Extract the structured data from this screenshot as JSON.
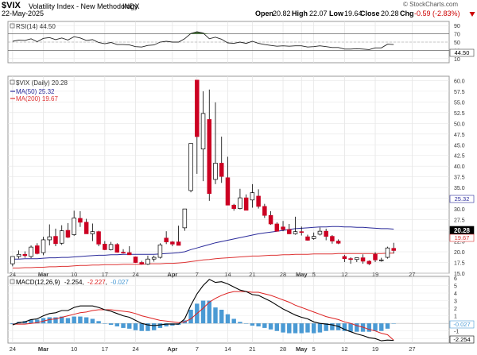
{
  "header": {
    "symbol": "$VIX",
    "name": "Volatility Index - New Methodology",
    "exchange": "INDX",
    "date": "22-May-2025",
    "brand": "© StockCharts.com",
    "open_label": "Open",
    "open": "20.82",
    "high_label": "High",
    "high": "22.07",
    "low_label": "Low",
    "low": "19.64",
    "close_label": "Close",
    "close": "20.28",
    "chg_label": "Chg",
    "chg": "-0.59 (-2.83%)",
    "chg_icon": "down-triangle-icon"
  },
  "colors": {
    "up": "#ffffff",
    "down": "#cc0022",
    "ma50": "#2a2a9a",
    "ma200": "#dd3333",
    "macd_line": "#000000",
    "signal_line": "#dd2222",
    "histogram": "#4a9ad4",
    "rsi_fill": "#4a7a3a"
  },
  "rsi_panel": {
    "legend": "RSI(14) 44.50",
    "ticks": [
      "90",
      "70",
      "50",
      "30",
      "10"
    ],
    "current_label": "44.50"
  },
  "price_panel": {
    "legend": "$VIX (Daily) 20.28",
    "ma50_legend": "MA(50) 25.32",
    "ma200_legend": "MA(200) 19.67",
    "ticks": [
      "60.0",
      "57.5",
      "55.0",
      "52.5",
      "50.0",
      "47.5",
      "45.0",
      "42.5",
      "40.0",
      "37.5",
      "35.0",
      "32.5",
      "30.0",
      "27.5",
      "25.0",
      "22.5",
      "20.0",
      "17.5",
      "15.0"
    ],
    "tag_ma50": "25.32",
    "tag_close": "20.28",
    "tag_ma200": "19.67"
  },
  "macd_panel": {
    "legend": "MACD(12,26,9)",
    "macd_value": "-2.254",
    "signal_value": "-2.227",
    "hist_value": "-0.027",
    "ticks": [
      "6",
      "5",
      "4",
      "3",
      "2",
      "1",
      "0",
      "-1",
      "-2"
    ],
    "tag_hist": "-0.027",
    "tag_macd": "-2.254"
  },
  "x_axis_labels": [
    "24",
    "Mar",
    "10",
    "17",
    "24",
    "Apr",
    "7",
    "14",
    "21",
    "28",
    "May",
    "5",
    "12",
    "19",
    "27"
  ],
  "chart_data": {
    "type": "candlestick",
    "title": "$VIX Volatility Index - New Methodology INDX",
    "date_range": [
      "2025-02-24",
      "2025-05-22"
    ],
    "ohlc": [
      {
        "d": "2025-02-24",
        "o": 17.2,
        "h": 18.9,
        "l": 16.6,
        "c": 18.9
      },
      {
        "d": "2025-02-25",
        "o": 18.9,
        "h": 20.3,
        "l": 18.4,
        "c": 19.4
      },
      {
        "d": "2025-02-26",
        "o": 19.4,
        "h": 20.1,
        "l": 18.6,
        "c": 19.1
      },
      {
        "d": "2025-02-27",
        "o": 18.9,
        "h": 21.5,
        "l": 18.5,
        "c": 21.1
      },
      {
        "d": "2025-02-28",
        "o": 21.4,
        "h": 22.0,
        "l": 19.4,
        "c": 19.6
      },
      {
        "d": "2025-03-03",
        "o": 19.8,
        "h": 23.5,
        "l": 19.2,
        "c": 22.8
      },
      {
        "d": "2025-03-04",
        "o": 22.8,
        "h": 26.4,
        "l": 21.5,
        "c": 23.5
      },
      {
        "d": "2025-03-05",
        "o": 23.6,
        "h": 25.4,
        "l": 21.3,
        "c": 21.9
      },
      {
        "d": "2025-03-06",
        "o": 22.0,
        "h": 26.2,
        "l": 21.6,
        "c": 24.9
      },
      {
        "d": "2025-03-07",
        "o": 25.0,
        "h": 26.7,
        "l": 23.2,
        "c": 23.4
      },
      {
        "d": "2025-03-10",
        "o": 24.0,
        "h": 29.6,
        "l": 23.7,
        "c": 27.9
      },
      {
        "d": "2025-03-11",
        "o": 27.8,
        "h": 29.5,
        "l": 25.8,
        "c": 26.9
      },
      {
        "d": "2025-03-12",
        "o": 26.9,
        "h": 27.7,
        "l": 24.3,
        "c": 24.2
      },
      {
        "d": "2025-03-13",
        "o": 24.2,
        "h": 26.6,
        "l": 22.5,
        "c": 24.7
      },
      {
        "d": "2025-03-14",
        "o": 24.7,
        "h": 24.9,
        "l": 21.3,
        "c": 21.8
      },
      {
        "d": "2025-03-17",
        "o": 21.8,
        "h": 22.5,
        "l": 20.4,
        "c": 20.5
      },
      {
        "d": "2025-03-18",
        "o": 20.5,
        "h": 22.3,
        "l": 20.3,
        "c": 21.7
      },
      {
        "d": "2025-03-19",
        "o": 21.7,
        "h": 22.0,
        "l": 19.8,
        "c": 19.9
      },
      {
        "d": "2025-03-20",
        "o": 19.9,
        "h": 20.6,
        "l": 19.6,
        "c": 19.8
      },
      {
        "d": "2025-03-21",
        "o": 19.8,
        "h": 21.3,
        "l": 19.4,
        "c": 19.3
      },
      {
        "d": "2025-03-24",
        "o": 18.8,
        "h": 18.9,
        "l": 17.4,
        "c": 17.5
      },
      {
        "d": "2025-03-25",
        "o": 17.5,
        "h": 17.9,
        "l": 17.0,
        "c": 17.1
      },
      {
        "d": "2025-03-26",
        "o": 17.1,
        "h": 19.1,
        "l": 16.9,
        "c": 18.3
      },
      {
        "d": "2025-03-27",
        "o": 18.3,
        "h": 19.1,
        "l": 17.7,
        "c": 18.7
      },
      {
        "d": "2025-03-28",
        "o": 18.7,
        "h": 22.0,
        "l": 18.4,
        "c": 21.6
      },
      {
        "d": "2025-03-31",
        "o": 23.2,
        "h": 24.8,
        "l": 21.8,
        "c": 22.3
      },
      {
        "d": "2025-04-01",
        "o": 22.3,
        "h": 22.5,
        "l": 21.3,
        "c": 21.8
      },
      {
        "d": "2025-04-02",
        "o": 22.3,
        "h": 26.1,
        "l": 21.5,
        "c": 21.5
      },
      {
        "d": "2025-04-03",
        "o": 25.6,
        "h": 30.0,
        "l": 24.9,
        "c": 30.0
      },
      {
        "d": "2025-04-04",
        "o": 34.3,
        "h": 45.3,
        "l": 33.9,
        "c": 45.3
      },
      {
        "d": "2025-04-07",
        "o": 60.1,
        "h": 60.1,
        "l": 38.2,
        "c": 46.9
      },
      {
        "d": "2025-04-08",
        "o": 44.0,
        "h": 57.5,
        "l": 36.5,
        "c": 52.3
      },
      {
        "d": "2025-04-09",
        "o": 50.9,
        "h": 57.9,
        "l": 31.9,
        "c": 33.6
      },
      {
        "d": "2025-04-10",
        "o": 36.9,
        "h": 54.9,
        "l": 35.8,
        "c": 40.7
      },
      {
        "d": "2025-04-11",
        "o": 40.7,
        "h": 46.9,
        "l": 36.1,
        "c": 37.6
      },
      {
        "d": "2025-04-14",
        "o": 37.3,
        "h": 42.2,
        "l": 30.9,
        "c": 30.9
      },
      {
        "d": "2025-04-15",
        "o": 30.9,
        "h": 31.2,
        "l": 29.6,
        "c": 30.1
      },
      {
        "d": "2025-04-16",
        "o": 30.1,
        "h": 34.7,
        "l": 29.9,
        "c": 32.6
      },
      {
        "d": "2025-04-17",
        "o": 32.6,
        "h": 33.4,
        "l": 29.8,
        "c": 29.7
      },
      {
        "d": "2025-04-21",
        "o": 32.1,
        "h": 35.8,
        "l": 30.3,
        "c": 33.8
      },
      {
        "d": "2025-04-22",
        "o": 33.0,
        "h": 34.6,
        "l": 30.1,
        "c": 30.6
      },
      {
        "d": "2025-04-23",
        "o": 30.6,
        "h": 31.2,
        "l": 27.9,
        "c": 28.5
      },
      {
        "d": "2025-04-24",
        "o": 28.5,
        "h": 29.5,
        "l": 26.3,
        "c": 26.5
      },
      {
        "d": "2025-04-25",
        "o": 26.5,
        "h": 26.9,
        "l": 24.8,
        "c": 24.8
      },
      {
        "d": "2025-04-28",
        "o": 25.8,
        "h": 27.2,
        "l": 24.8,
        "c": 25.2
      },
      {
        "d": "2025-04-29",
        "o": 25.2,
        "h": 26.5,
        "l": 24.1,
        "c": 24.2
      },
      {
        "d": "2025-04-30",
        "o": 24.2,
        "h": 28.2,
        "l": 24.0,
        "c": 24.7
      },
      {
        "d": "2025-05-01",
        "o": 24.7,
        "h": 25.9,
        "l": 23.8,
        "c": 24.6
      },
      {
        "d": "2025-05-02",
        "o": 23.5,
        "h": 24.0,
        "l": 22.6,
        "c": 22.7
      },
      {
        "d": "2025-05-05",
        "o": 23.1,
        "h": 24.5,
        "l": 22.8,
        "c": 23.6
      },
      {
        "d": "2025-05-06",
        "o": 24.1,
        "h": 25.7,
        "l": 23.8,
        "c": 24.8
      },
      {
        "d": "2025-05-07",
        "o": 24.8,
        "h": 25.4,
        "l": 22.7,
        "c": 23.6
      },
      {
        "d": "2025-05-08",
        "o": 23.6,
        "h": 23.9,
        "l": 21.9,
        "c": 22.5
      },
      {
        "d": "2025-05-09",
        "o": 22.5,
        "h": 22.9,
        "l": 21.8,
        "c": 22.0
      },
      {
        "d": "2025-05-12",
        "o": 18.9,
        "h": 19.3,
        "l": 17.6,
        "c": 18.4
      },
      {
        "d": "2025-05-13",
        "o": 18.4,
        "h": 18.7,
        "l": 17.2,
        "c": 18.2
      },
      {
        "d": "2025-05-14",
        "o": 18.2,
        "h": 18.6,
        "l": 17.6,
        "c": 18.6
      },
      {
        "d": "2025-05-15",
        "o": 18.6,
        "h": 19.4,
        "l": 17.2,
        "c": 17.8
      },
      {
        "d": "2025-05-16",
        "o": 17.8,
        "h": 18.0,
        "l": 16.9,
        "c": 17.2
      },
      {
        "d": "2025-05-19",
        "o": 19.4,
        "h": 19.9,
        "l": 17.6,
        "c": 18.1
      },
      {
        "d": "2025-05-20",
        "o": 18.1,
        "h": 18.6,
        "l": 17.7,
        "c": 18.1
      },
      {
        "d": "2025-05-21",
        "o": 18.7,
        "h": 21.2,
        "l": 18.4,
        "c": 20.9
      },
      {
        "d": "2025-05-22",
        "o": 20.8,
        "h": 22.1,
        "l": 19.6,
        "c": 20.3
      }
    ],
    "ma50": [
      18.3,
      18.3,
      18.4,
      18.4,
      18.4,
      18.5,
      18.6,
      18.6,
      18.7,
      18.7,
      18.8,
      18.9,
      19.0,
      19.1,
      19.2,
      19.2,
      19.3,
      19.3,
      19.4,
      19.4,
      19.4,
      19.4,
      19.4,
      19.4,
      19.5,
      19.6,
      19.7,
      19.8,
      20.0,
      20.5,
      20.9,
      21.3,
      21.7,
      22.1,
      22.4,
      22.7,
      23.0,
      23.3,
      23.6,
      23.9,
      24.2,
      24.4,
      24.6,
      24.8,
      25.0,
      25.2,
      25.4,
      25.5,
      25.6,
      25.7,
      25.8,
      25.8,
      25.9,
      25.9,
      25.8,
      25.8,
      25.7,
      25.7,
      25.6,
      25.5,
      25.4,
      25.4,
      25.3
    ],
    "ma200": [
      16.2,
      16.2,
      16.3,
      16.3,
      16.4,
      16.4,
      16.5,
      16.5,
      16.6,
      16.6,
      16.7,
      16.8,
      16.8,
      16.9,
      16.9,
      17.0,
      17.0,
      17.0,
      17.1,
      17.1,
      17.1,
      17.1,
      17.2,
      17.2,
      17.2,
      17.3,
      17.3,
      17.4,
      17.5,
      17.7,
      17.9,
      18.1,
      18.2,
      18.4,
      18.5,
      18.6,
      18.7,
      18.8,
      18.9,
      19.0,
      19.0,
      19.1,
      19.2,
      19.2,
      19.3,
      19.3,
      19.4,
      19.4,
      19.4,
      19.5,
      19.5,
      19.5,
      19.5,
      19.6,
      19.6,
      19.6,
      19.6,
      19.6,
      19.6,
      19.6,
      19.6,
      19.7,
      19.7
    ],
    "rsi": [
      52,
      55,
      54,
      58,
      51,
      59,
      61,
      56,
      60,
      55,
      63,
      60,
      54,
      56,
      49,
      46,
      49,
      44,
      44,
      43,
      39,
      38,
      42,
      43,
      50,
      52,
      50,
      50,
      58,
      71,
      75,
      72,
      58,
      62,
      57,
      48,
      47,
      50,
      47,
      52,
      47,
      44,
      42,
      40,
      41,
      40,
      41,
      41,
      38,
      39,
      41,
      39,
      37,
      37,
      33,
      33,
      34,
      33,
      32,
      36,
      36,
      45,
      44
    ],
    "rsi_range": [
      0,
      100
    ],
    "rsi_levels": [
      70,
      30
    ],
    "macd": [
      -0.2,
      0.1,
      0.2,
      0.5,
      0.6,
      1.0,
      1.3,
      1.4,
      1.7,
      1.7,
      2.1,
      2.3,
      2.3,
      2.3,
      2.1,
      1.8,
      1.6,
      1.3,
      1.0,
      0.8,
      0.4,
      0.0,
      -0.2,
      -0.3,
      -0.2,
      -0.1,
      -0.1,
      -0.1,
      0.6,
      2.4,
      3.9,
      5.0,
      5.8,
      5.4,
      5.5,
      5.2,
      4.8,
      4.4,
      4.2,
      3.8,
      3.7,
      3.3,
      2.9,
      2.4,
      1.9,
      1.5,
      1.1,
      0.8,
      0.6,
      0.2,
      0.0,
      -0.1,
      -0.2,
      -0.4,
      -0.8,
      -1.1,
      -1.4,
      -1.6,
      -1.9,
      -2.0,
      -2.3,
      -2.2,
      -2.25
    ],
    "signal": [
      -0.1,
      -0.1,
      -0.1,
      0.0,
      0.1,
      0.3,
      0.5,
      0.6,
      0.8,
      1.0,
      1.2,
      1.4,
      1.5,
      1.7,
      1.8,
      1.8,
      1.8,
      1.7,
      1.6,
      1.5,
      1.3,
      1.0,
      0.8,
      0.6,
      0.4,
      0.3,
      0.2,
      0.1,
      0.2,
      0.6,
      1.3,
      2.0,
      2.8,
      3.3,
      3.7,
      4.0,
      4.2,
      4.2,
      4.2,
      4.1,
      4.1,
      3.9,
      3.7,
      3.4,
      3.1,
      2.8,
      2.4,
      2.1,
      1.8,
      1.5,
      1.2,
      0.9,
      0.7,
      0.5,
      0.2,
      0.0,
      -0.3,
      -0.5,
      -0.8,
      -1.0,
      -1.3,
      -1.5,
      -2.227
    ],
    "price_range": [
      15.0,
      61.0
    ],
    "macd_range": [
      -2.6,
      6.2
    ]
  }
}
